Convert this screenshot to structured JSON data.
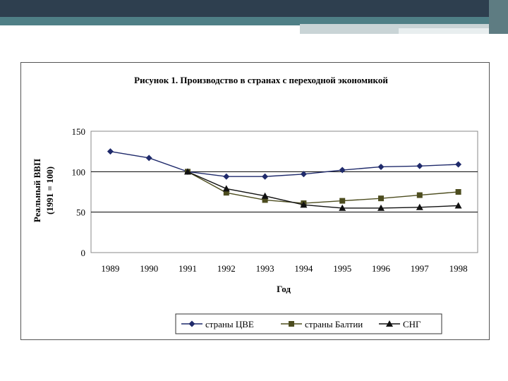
{
  "slide": {
    "accent_colors": [
      "#2e3f4f",
      "#4f7f86",
      "#c9d4d6"
    ]
  },
  "chart_data": {
    "type": "line",
    "title": "Рисунок 1. Производство в странах с переходной экономикой",
    "xlabel": "Год",
    "ylabel_line1": "Реальный ВВП",
    "ylabel_line2": "(1991 = 100)",
    "x": [
      "1989",
      "1990",
      "1991",
      "1992",
      "1993",
      "1994",
      "1995",
      "1996",
      "1997",
      "1998"
    ],
    "ylim": [
      0,
      150
    ],
    "yticks": [
      "0",
      "50",
      "100",
      "150"
    ],
    "grid": "horizontal",
    "legend_position": "bottom",
    "series": [
      {
        "name": "страны ЦВЕ",
        "marker": "diamond",
        "color": "#1f2a6b",
        "values": [
          125,
          117,
          100,
          94,
          94,
          97,
          102,
          106,
          107,
          109
        ]
      },
      {
        "name": "страны Балтии",
        "marker": "square",
        "color": "#4d4d1f",
        "values": [
          null,
          null,
          100,
          74,
          65,
          61,
          64,
          67,
          71,
          75
        ]
      },
      {
        "name": "СНГ",
        "marker": "triangle",
        "color": "#111111",
        "values": [
          null,
          null,
          100,
          79,
          70,
          59,
          55,
          55,
          56,
          58
        ]
      }
    ]
  }
}
